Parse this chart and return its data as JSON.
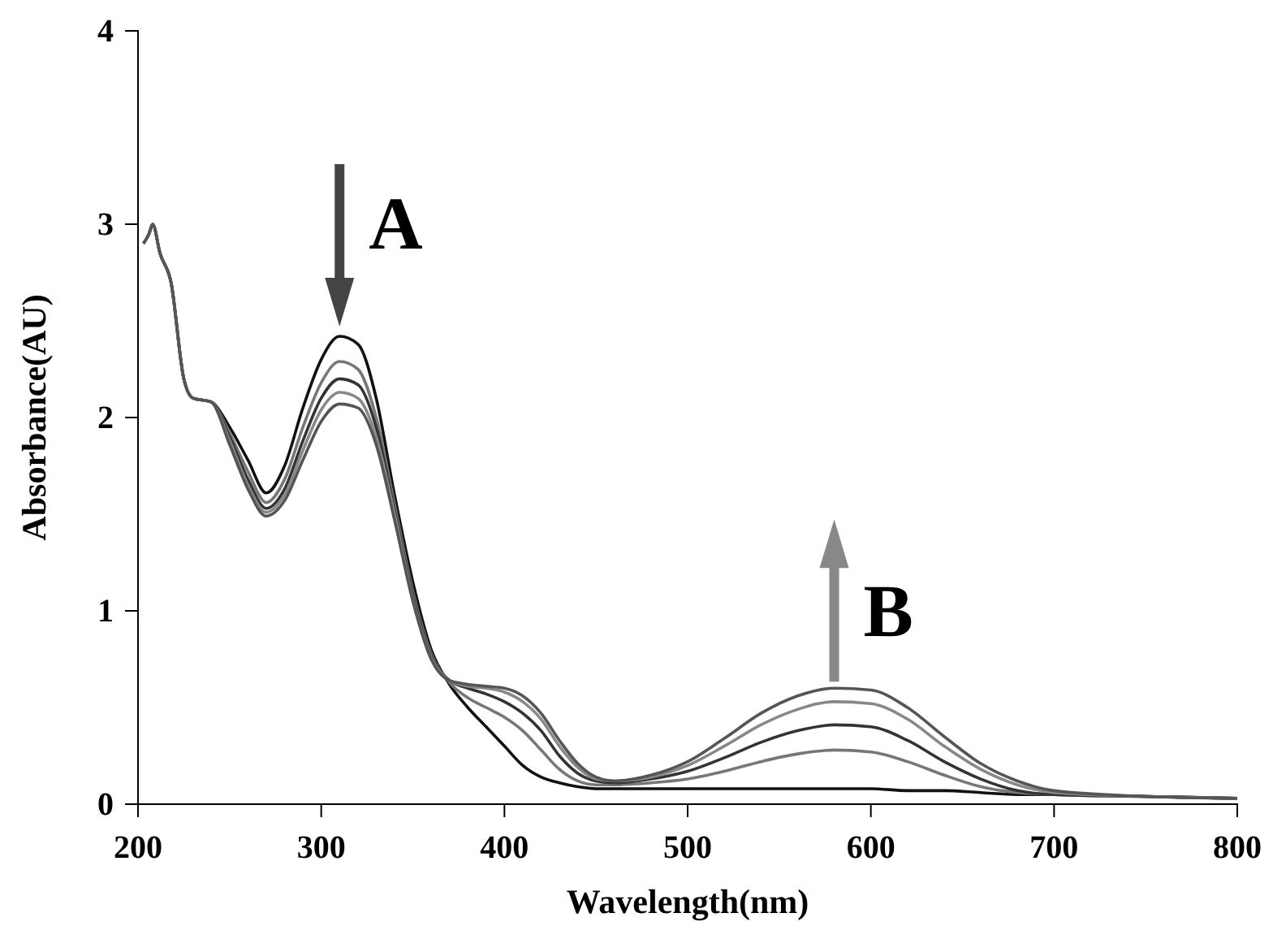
{
  "chart_data": {
    "type": "line",
    "xlabel": "Wavelength(nm)",
    "ylabel": "Absorbance(AU)",
    "x": [
      203,
      206,
      208,
      212,
      218,
      225,
      230,
      240,
      250,
      260,
      270,
      280,
      290,
      300,
      310,
      320,
      330,
      340,
      350,
      360,
      370,
      380,
      390,
      400,
      410,
      420,
      430,
      440,
      450,
      460,
      480,
      500,
      520,
      540,
      560,
      580,
      600,
      620,
      640,
      660,
      680,
      700,
      750,
      800
    ],
    "series": [
      {
        "color": "#111111",
        "values": [
          2.9,
          2.95,
          3.0,
          2.85,
          2.7,
          2.2,
          2.1,
          2.08,
          1.95,
          1.78,
          1.61,
          1.75,
          2.05,
          2.3,
          2.42,
          2.38,
          2.1,
          1.6,
          1.15,
          0.8,
          0.62,
          0.5,
          0.4,
          0.3,
          0.2,
          0.14,
          0.11,
          0.09,
          0.08,
          0.08,
          0.08,
          0.08,
          0.08,
          0.08,
          0.08,
          0.08,
          0.08,
          0.07,
          0.07,
          0.06,
          0.05,
          0.05,
          0.04,
          0.03
        ]
      },
      {
        "color": "#777777",
        "values": [
          2.9,
          2.95,
          3.0,
          2.85,
          2.7,
          2.2,
          2.1,
          2.08,
          1.92,
          1.72,
          1.56,
          1.68,
          1.95,
          2.18,
          2.29,
          2.25,
          2.0,
          1.55,
          1.1,
          0.78,
          0.63,
          0.55,
          0.5,
          0.45,
          0.38,
          0.28,
          0.18,
          0.12,
          0.1,
          0.1,
          0.11,
          0.13,
          0.17,
          0.22,
          0.26,
          0.28,
          0.27,
          0.22,
          0.15,
          0.09,
          0.06,
          0.05,
          0.04,
          0.03
        ]
      },
      {
        "color": "#333333",
        "values": [
          2.9,
          2.95,
          3.0,
          2.85,
          2.7,
          2.2,
          2.1,
          2.08,
          1.9,
          1.68,
          1.53,
          1.63,
          1.88,
          2.1,
          2.2,
          2.17,
          1.95,
          1.52,
          1.08,
          0.77,
          0.64,
          0.6,
          0.57,
          0.53,
          0.47,
          0.38,
          0.25,
          0.16,
          0.12,
          0.11,
          0.13,
          0.17,
          0.24,
          0.32,
          0.38,
          0.41,
          0.4,
          0.33,
          0.22,
          0.13,
          0.07,
          0.05,
          0.04,
          0.03
        ]
      },
      {
        "color": "#888888",
        "values": [
          2.9,
          2.95,
          3.0,
          2.85,
          2.7,
          2.2,
          2.1,
          2.08,
          1.88,
          1.65,
          1.51,
          1.6,
          1.83,
          2.04,
          2.13,
          2.1,
          1.9,
          1.5,
          1.06,
          0.76,
          0.64,
          0.61,
          0.6,
          0.58,
          0.53,
          0.44,
          0.3,
          0.19,
          0.13,
          0.12,
          0.14,
          0.2,
          0.3,
          0.41,
          0.49,
          0.53,
          0.52,
          0.44,
          0.3,
          0.18,
          0.1,
          0.06,
          0.04,
          0.03
        ]
      },
      {
        "color": "#555555",
        "values": [
          2.9,
          2.95,
          3.0,
          2.85,
          2.7,
          2.2,
          2.1,
          2.08,
          1.86,
          1.63,
          1.49,
          1.57,
          1.78,
          1.98,
          2.07,
          2.05,
          1.86,
          1.47,
          1.05,
          0.75,
          0.64,
          0.62,
          0.61,
          0.6,
          0.56,
          0.47,
          0.33,
          0.21,
          0.14,
          0.12,
          0.15,
          0.22,
          0.34,
          0.47,
          0.56,
          0.6,
          0.59,
          0.5,
          0.35,
          0.21,
          0.12,
          0.07,
          0.04,
          0.03
        ]
      }
    ],
    "annotations": [
      {
        "text": "A",
        "x": 310,
        "y": 2.42
      },
      {
        "text": "B",
        "x": 580,
        "y": 0.6
      }
    ],
    "xlim": [
      200,
      800
    ],
    "xticks": [
      200,
      300,
      400,
      500,
      600,
      700,
      800
    ],
    "ylim": [
      0,
      4
    ],
    "yticks": [
      0,
      1,
      2,
      3,
      4
    ],
    "grid": false,
    "marker": "none",
    "line_style": "solid"
  }
}
